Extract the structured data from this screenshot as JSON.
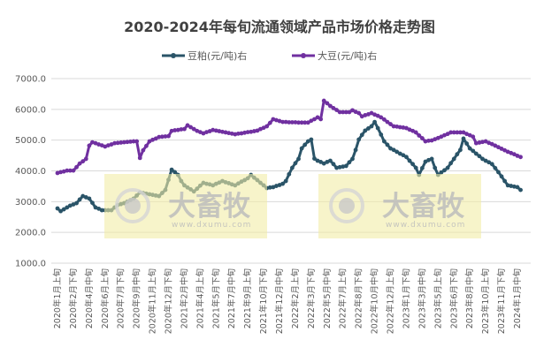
{
  "chart_data": {
    "type": "line",
    "title": "2020-2024年每旬流通领域产品市场价格走势图",
    "xlabel": "",
    "ylabel": "",
    "ylim": [
      1000,
      7000
    ],
    "y_ticks": [
      "1000.0",
      "2000.0",
      "3000.0",
      "4000.0",
      "5000.0",
      "6000.0",
      "7000.0"
    ],
    "grid": "horizontal",
    "legend_position": "top",
    "x_tick_labels": [
      "2020年1月上旬",
      "2020年2月下旬",
      "2020年4月中旬",
      "2020年6月上旬",
      "2020年7月下旬",
      "2020年9月中旬",
      "2020年11月上旬",
      "2020年12月下旬",
      "2021年2月中旬",
      "2021年4月上旬",
      "2021年5月下旬",
      "2021年7月中旬",
      "2021年9月上旬",
      "2021年10月下旬",
      "2021年12月中旬",
      "2022年2月上旬",
      "2022年3月下旬",
      "2022年5月中旬",
      "2022年7月上旬",
      "2022年8月下旬",
      "2022年10月中旬",
      "2022年12月上旬",
      "2023年1月下旬",
      "2023年3月中旬",
      "2023年5月上旬",
      "2023年6月下旬",
      "2023年8月中旬",
      "2023年10月上旬",
      "2023年11月下旬",
      "2024年1月中旬"
    ],
    "x_tick_every": 5,
    "series": [
      {
        "name": "豆粕(元/吨)右",
        "color": "#2a5468",
        "values": [
          2780,
          2690,
          2750,
          2810,
          2870,
          2910,
          2950,
          3070,
          3180,
          3140,
          3100,
          2960,
          2810,
          2770,
          2720,
          2720,
          2720,
          2720,
          2810,
          2890,
          2920,
          2950,
          3000,
          3050,
          3100,
          3200,
          3300,
          3280,
          3260,
          3240,
          3220,
          3200,
          3180,
          3280,
          3380,
          3710,
          4040,
          3960,
          3870,
          3670,
          3530,
          3460,
          3400,
          3330,
          3420,
          3520,
          3610,
          3580,
          3560,
          3530,
          3580,
          3620,
          3670,
          3630,
          3600,
          3560,
          3530,
          3590,
          3650,
          3700,
          3760,
          3870,
          3780,
          3700,
          3610,
          3530,
          3440,
          3460,
          3470,
          3510,
          3540,
          3580,
          3670,
          3890,
          4100,
          4250,
          4390,
          4730,
          4850,
          4960,
          5020,
          4400,
          4330,
          4290,
          4240,
          4290,
          4330,
          4220,
          4100,
          4120,
          4140,
          4160,
          4280,
          4390,
          4680,
          5020,
          5170,
          5310,
          5380,
          5450,
          5590,
          5390,
          5180,
          4960,
          4850,
          4730,
          4680,
          4620,
          4560,
          4510,
          4450,
          4330,
          4220,
          4100,
          3870,
          4090,
          4300,
          4350,
          4390,
          4100,
          3870,
          3950,
          4020,
          4100,
          4250,
          4390,
          4540,
          4680,
          5050,
          4890,
          4730,
          4650,
          4560,
          4480,
          4390,
          4330,
          4280,
          4220,
          4090,
          3960,
          3820,
          3670,
          3530,
          3510,
          3490,
          3470,
          3380
        ]
      },
      {
        "name": "大豆(元/吨)右",
        "color": "#7030a0",
        "values": [
          3930,
          3960,
          3980,
          4010,
          4010,
          4010,
          4120,
          4240,
          4310,
          4390,
          4820,
          4930,
          4900,
          4860,
          4830,
          4790,
          4830,
          4860,
          4900,
          4910,
          4920,
          4930,
          4940,
          4950,
          4960,
          4960,
          4420,
          4670,
          4810,
          4960,
          5010,
          5050,
          5100,
          5110,
          5120,
          5130,
          5300,
          5320,
          5330,
          5350,
          5360,
          5480,
          5420,
          5360,
          5300,
          5260,
          5220,
          5260,
          5290,
          5330,
          5310,
          5290,
          5270,
          5250,
          5230,
          5210,
          5190,
          5210,
          5220,
          5240,
          5260,
          5270,
          5290,
          5310,
          5360,
          5400,
          5450,
          5560,
          5680,
          5650,
          5620,
          5590,
          5590,
          5580,
          5580,
          5580,
          5570,
          5570,
          5570,
          5570,
          5630,
          5680,
          5740,
          5680,
          6280,
          6200,
          6110,
          6040,
          5980,
          5910,
          5910,
          5910,
          5910,
          5970,
          5920,
          5880,
          5770,
          5810,
          5840,
          5880,
          5830,
          5790,
          5740,
          5670,
          5590,
          5520,
          5450,
          5440,
          5420,
          5410,
          5390,
          5340,
          5300,
          5250,
          5150,
          5060,
          4960,
          4980,
          4990,
          5030,
          5070,
          5110,
          5160,
          5200,
          5250,
          5250,
          5250,
          5250,
          5250,
          5200,
          5160,
          5110,
          4900,
          4920,
          4940,
          4960,
          4910,
          4870,
          4820,
          4770,
          4720,
          4670,
          4620,
          4580,
          4540,
          4490,
          4450
        ]
      }
    ]
  },
  "watermark": {
    "brand": "大畜牧",
    "url": "www.dxumu.com",
    "fill": "#f2eca6"
  }
}
